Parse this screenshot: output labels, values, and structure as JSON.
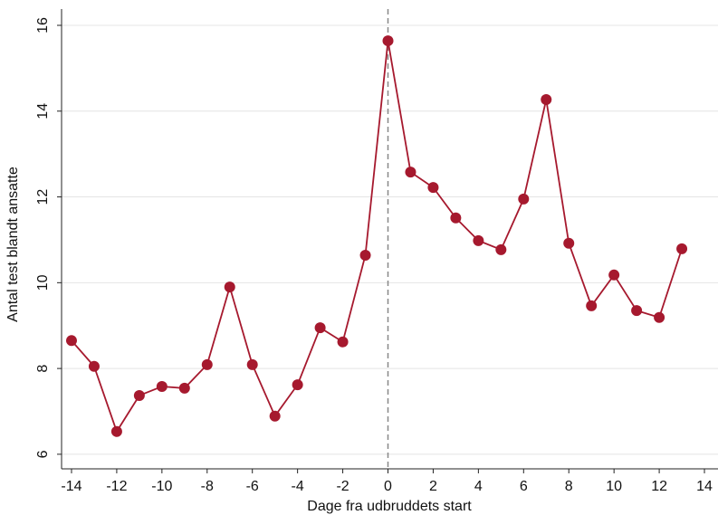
{
  "chart_data": {
    "type": "line",
    "x_label": "Dage fra udbruddets start",
    "y_label": "Antal test blandt ansatte",
    "x": [
      -14,
      -13,
      -12,
      -11,
      -10,
      -9,
      -8,
      -7,
      -6,
      -5,
      -4,
      -3,
      -2,
      -1,
      0,
      1,
      2,
      3,
      4,
      5,
      6,
      7,
      8,
      9,
      10,
      11,
      12,
      13
    ],
    "series": [
      {
        "color": "#a6192e",
        "values": [
          8.65,
          8.05,
          6.53,
          7.37,
          7.58,
          7.54,
          8.09,
          9.9,
          8.09,
          6.89,
          7.62,
          8.95,
          8.62,
          10.64,
          15.64,
          12.58,
          12.22,
          11.51,
          10.98,
          10.77,
          11.95,
          14.27,
          10.92,
          9.46,
          10.18,
          9.35,
          9.19,
          10.79
        ]
      }
    ],
    "xlim": [
      -14.44,
      14.6
    ],
    "ylim": [
      5.66,
      16.38
    ],
    "xticks": [
      -14,
      -12,
      -10,
      -8,
      -6,
      -4,
      -2,
      0,
      2,
      4,
      6,
      8,
      10,
      12,
      14
    ],
    "yticks": [
      6,
      8,
      10,
      12,
      14,
      16
    ],
    "vline": 0,
    "grid": true
  }
}
